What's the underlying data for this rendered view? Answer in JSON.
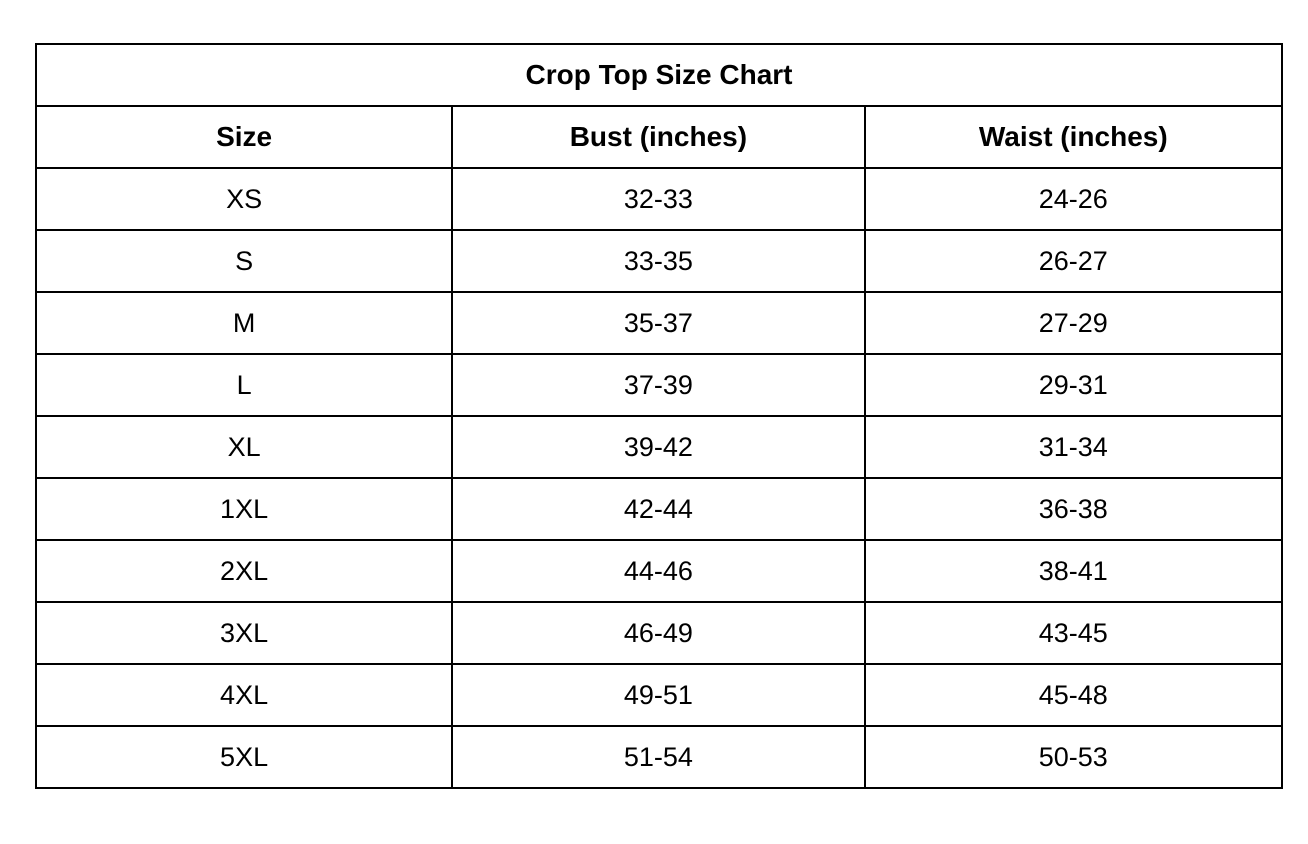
{
  "table": {
    "title": "Crop Top Size Chart",
    "columns": [
      "Size",
      "Bust (inches)",
      "Waist (inches)"
    ],
    "rows": [
      {
        "size": "XS",
        "bust": "32-33",
        "waist": "24-26"
      },
      {
        "size": "S",
        "bust": "33-35",
        "waist": "26-27"
      },
      {
        "size": "M",
        "bust": "35-37",
        "waist": "27-29"
      },
      {
        "size": "L",
        "bust": "37-39",
        "waist": "29-31"
      },
      {
        "size": "XL",
        "bust": "39-42",
        "waist": "31-34"
      },
      {
        "size": "1XL",
        "bust": "42-44",
        "waist": "36-38"
      },
      {
        "size": "2XL",
        "bust": "44-46",
        "waist": "38-41"
      },
      {
        "size": "3XL",
        "bust": "46-49",
        "waist": "43-45"
      },
      {
        "size": "4XL",
        "bust": "49-51",
        "waist": "45-48"
      },
      {
        "size": "5XL",
        "bust": "51-54",
        "waist": "50-53"
      }
    ],
    "colors": {
      "text": "#000000",
      "border": "#000000",
      "background": "#ffffff"
    }
  }
}
